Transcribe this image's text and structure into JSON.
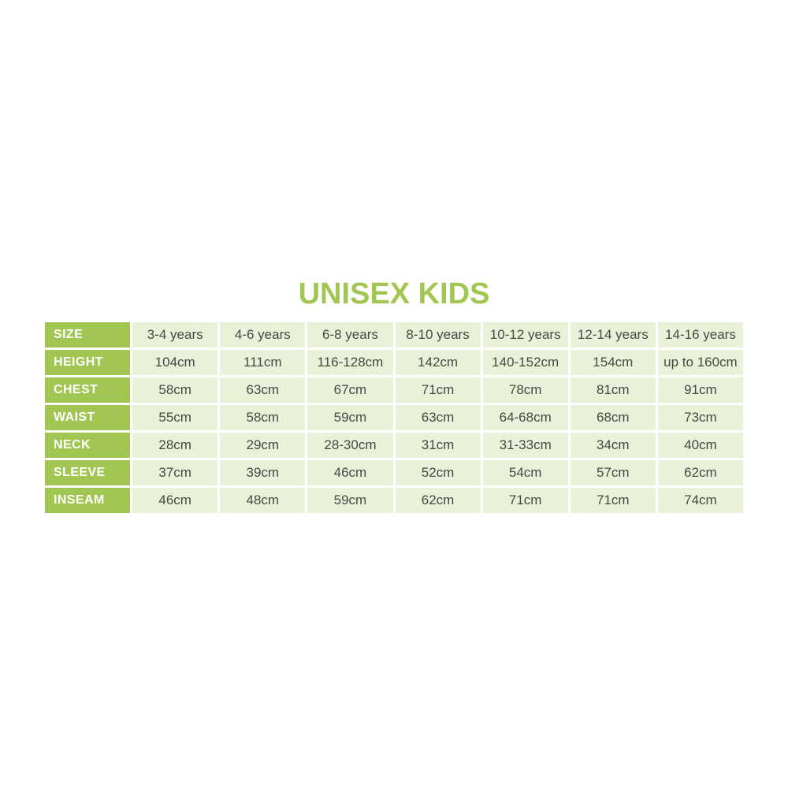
{
  "title": "UNISEX KIDS",
  "colors": {
    "green": "#a1c752",
    "cell_background": "#e9f2d8",
    "data_text": "#424a44",
    "label_text": "#ffffff",
    "gridline": "#ffffff"
  },
  "chart_data": {
    "type": "table",
    "title": "UNISEX KIDS",
    "row_headers": [
      "SIZE",
      "HEIGHT",
      "CHEST",
      "WAIST",
      "NECK",
      "SLEEVE",
      "INSEAM"
    ],
    "columns": [
      "3-4 years",
      "4-6 years",
      "6-8 years",
      "8-10 years",
      "10-12 years",
      "12-14 years",
      "14-16 years"
    ],
    "rows": [
      {
        "label": "SIZE",
        "values": [
          "3-4 years",
          "4-6 years",
          "6-8 years",
          "8-10 years",
          "10-12 years",
          "12-14 years",
          "14-16 years"
        ]
      },
      {
        "label": "HEIGHT",
        "values": [
          "104cm",
          "111cm",
          "116-128cm",
          "142cm",
          "140-152cm",
          "154cm",
          "up to 160cm"
        ]
      },
      {
        "label": "CHEST",
        "values": [
          "58cm",
          "63cm",
          "67cm",
          "71cm",
          "78cm",
          "81cm",
          "91cm"
        ]
      },
      {
        "label": "WAIST",
        "values": [
          "55cm",
          "58cm",
          "59cm",
          "63cm",
          "64-68cm",
          "68cm",
          "73cm"
        ]
      },
      {
        "label": "NECK",
        "values": [
          "28cm",
          "29cm",
          "28-30cm",
          "31cm",
          "31-33cm",
          "34cm",
          "40cm"
        ]
      },
      {
        "label": "SLEEVE",
        "values": [
          "37cm",
          "39cm",
          "46cm",
          "52cm",
          "54cm",
          "57cm",
          "62cm"
        ]
      },
      {
        "label": "INSEAM",
        "values": [
          "46cm",
          "48cm",
          "59cm",
          "62cm",
          "71cm",
          "71cm",
          "74cm"
        ]
      }
    ]
  }
}
